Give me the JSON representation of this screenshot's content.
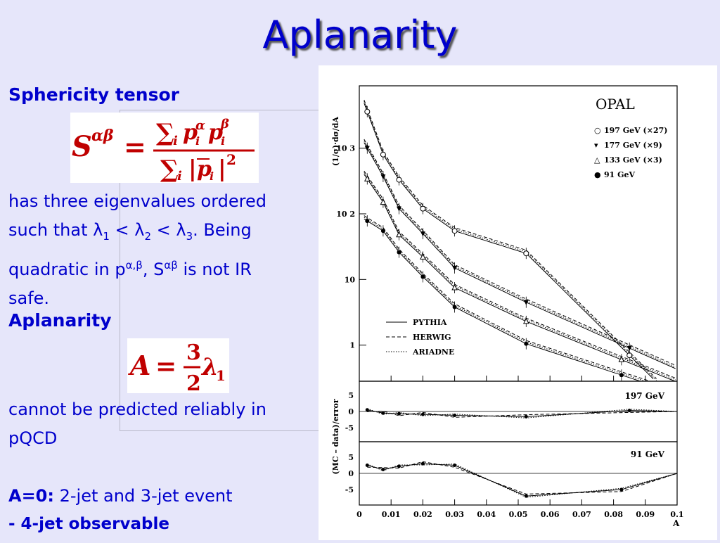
{
  "slide": {
    "title": "Aplanarity",
    "sphericity_heading": "Sphericity tensor",
    "eigen_text": {
      "line1": "has three eigenvalues ordered",
      "l2_a": "such that λ",
      "l2_s1": "1",
      "l2_b": " < λ",
      "l2_s2": "2",
      "l2_c": " < λ",
      "l2_s3": "3",
      "l2_d": ". Being",
      "l3_a": "quadratic in p",
      "l3_sup1": "α,β",
      "l3_b": ", S",
      "l3_sup2": "αβ",
      "l3_c": " is not IR",
      "line4": "safe."
    },
    "aplanarity_heading": "Aplanarity",
    "cannot_line1": "cannot be predicted reliably in",
    "cannot_line2": "pQCD",
    "a0_bold": "A=0:",
    "a0_rest": " 2-jet and 3-jet event",
    "four_jet": "- 4-jet observable"
  },
  "formulas": {
    "sphericity": {
      "S": "S",
      "sup": "αβ",
      "eq": "=",
      "num_sum": "∑",
      "num_i": "i",
      "num_p": "p",
      "num_ai": "α",
      "num_ii": "i",
      "num_p2": "p",
      "num_bi": "β",
      "num_i2": "i",
      "den_sum": "∑",
      "den_i": "i",
      "den_bar_l": "|",
      "den_p": "p",
      "den_sub": "i",
      "den_bar_r": "|",
      "den_sq": "2"
    },
    "aplanarity": {
      "A": "A",
      "eq": "=",
      "num": "3",
      "den": "2",
      "lam": "λ",
      "sub": "1"
    }
  },
  "chart_data": {
    "type": "line",
    "title": "OPAL",
    "ylabel_top": "(1/σ)·dσ/dA",
    "ylabel_bottom": "(MC – data)/error",
    "xlabel": "A",
    "x_ticks": [
      "0",
      "0.01",
      "0.02",
      "0.03",
      "0.04",
      "0.05",
      "0.06",
      "0.07",
      "0.08",
      "0.09",
      "0.1"
    ],
    "xlim": [
      0,
      0.1
    ],
    "y_scale": "log",
    "y_ticks_top": [
      "1",
      "10",
      "10 2",
      "10 3"
    ],
    "legend_data": [
      {
        "name": "197 GeV (×27)",
        "marker": "○"
      },
      {
        "name": "177 GeV (×9)",
        "marker": "▾"
      },
      {
        "name": "133 GeV (×3)",
        "marker": "△"
      },
      {
        "name": "91 GeV",
        "marker": "●"
      }
    ],
    "legend_models": [
      "PYTHIA",
      "HERWIG",
      "ARIADNE"
    ],
    "panel_197": {
      "label": "197 GeV",
      "y_ticks": [
        "5",
        "0",
        "-5"
      ]
    },
    "panel_91": {
      "label": "91 GeV",
      "y_ticks": [
        "5",
        "0",
        "-5"
      ]
    },
    "series": [
      {
        "name": "197 GeV (×27)",
        "marker": "circle-open",
        "x": [
          0.0025,
          0.0075,
          0.0125,
          0.02,
          0.03,
          0.0525,
          0.085
        ],
        "y": [
          3600,
          800,
          330,
          120,
          55,
          25,
          0.7
        ]
      },
      {
        "name": "177 GeV (×9)",
        "marker": "triangle-down",
        "x": [
          0.0025,
          0.0075,
          0.0125,
          0.02,
          0.03,
          0.0525,
          0.085
        ],
        "y": [
          1000,
          370,
          120,
          50,
          15,
          4.5,
          0.9
        ]
      },
      {
        "name": "133 GeV (×3)",
        "marker": "triangle-open",
        "x": [
          0.0025,
          0.0075,
          0.0125,
          0.02,
          0.03,
          0.0525,
          0.0825
        ],
        "y": [
          340,
          150,
          48,
          22,
          7.5,
          2.3,
          0.6
        ]
      },
      {
        "name": "91 GeV",
        "marker": "dot",
        "x": [
          0.0025,
          0.0075,
          0.0125,
          0.02,
          0.03,
          0.0525,
          0.0825
        ],
        "y": [
          78,
          55,
          26,
          11,
          3.8,
          1.05,
          0.35
        ]
      }
    ],
    "residuals_197": {
      "x": [
        0.0025,
        0.0075,
        0.0125,
        0.02,
        0.03,
        0.0525,
        0.085
      ],
      "y": [
        0.5,
        -0.5,
        -0.7,
        -0.9,
        -1.2,
        -1.6,
        0.3
      ]
    },
    "residuals_91": {
      "x": [
        0.0025,
        0.0075,
        0.0125,
        0.02,
        0.03,
        0.0525,
        0.0825
      ],
      "y": [
        2.5,
        1.2,
        2.2,
        3,
        2.5,
        -7,
        -5
      ]
    }
  }
}
